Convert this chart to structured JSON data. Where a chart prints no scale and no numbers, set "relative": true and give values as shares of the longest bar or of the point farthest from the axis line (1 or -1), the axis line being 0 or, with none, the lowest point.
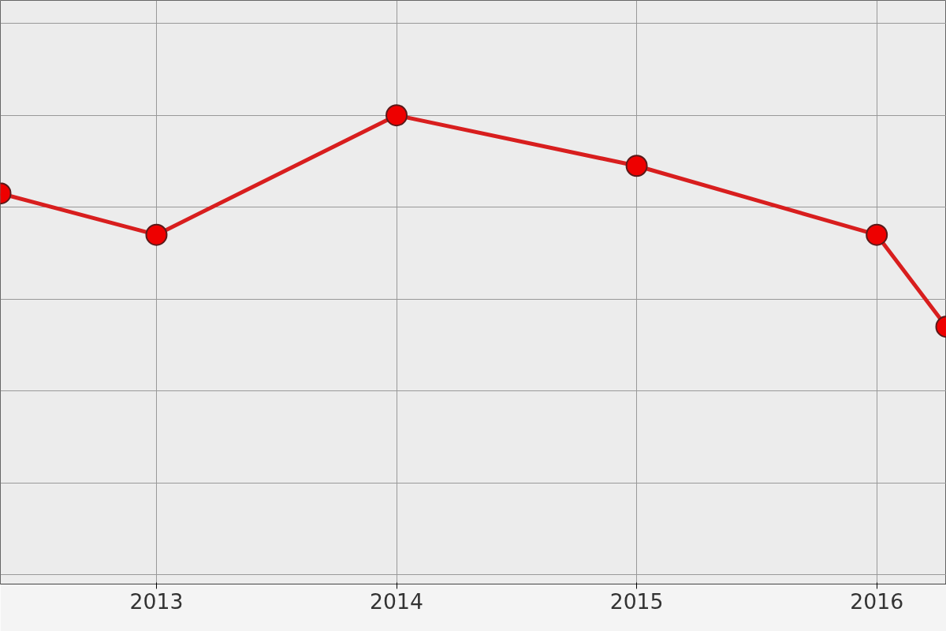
{
  "chart_data": {
    "type": "line",
    "relative": true,
    "x": [
      2012.35,
      2013,
      2014,
      2015,
      2016,
      2016.29
    ],
    "xlim": [
      2012.35,
      2016.29
    ],
    "xticks": [
      2013,
      2014,
      2015,
      2016
    ],
    "series": [
      {
        "color": "#d81e1e",
        "values": [
          0.83,
          0.74,
          1,
          0.89,
          0.74,
          0.54
        ]
      }
    ],
    "marker": "circle",
    "line_style": "solid",
    "grid": true
  }
}
